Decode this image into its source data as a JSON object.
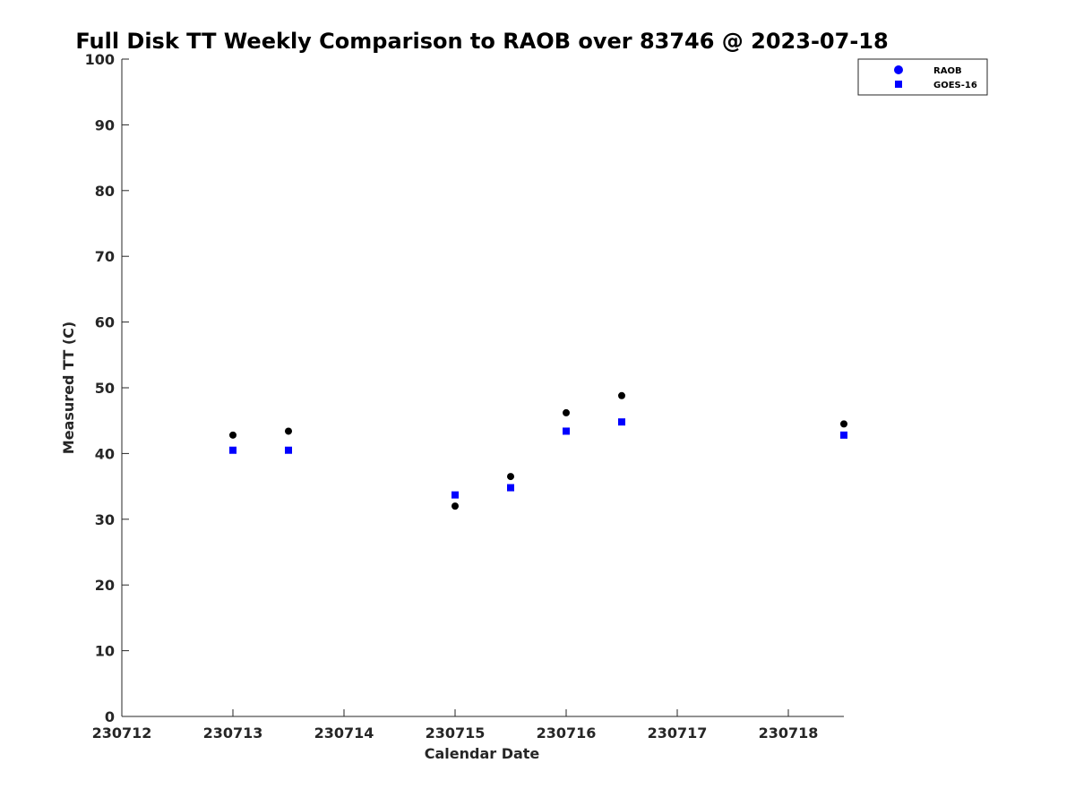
{
  "chart_data": {
    "type": "scatter",
    "title": "Full Disk TT Weekly Comparison to RAOB over 83746 @ 2023-07-18",
    "xlabel": "Calendar Date",
    "ylabel": "Measured TT (C)",
    "xlim": [
      230712,
      230718.5
    ],
    "ylim": [
      0,
      100
    ],
    "xticks": [
      230712,
      230713,
      230714,
      230715,
      230716,
      230717,
      230718
    ],
    "xtick_labels": [
      "230712",
      "230713",
      "230714",
      "230715",
      "230716",
      "230717",
      "230718"
    ],
    "yticks": [
      0,
      10,
      20,
      30,
      40,
      50,
      60,
      70,
      80,
      90,
      100
    ],
    "ytick_labels": [
      "0",
      "10",
      "20",
      "30",
      "40",
      "50",
      "60",
      "70",
      "80",
      "90",
      "100"
    ],
    "grid": false,
    "legend_position": "top-right",
    "series": [
      {
        "name": "RAOB",
        "marker": "circle",
        "color": "#000000",
        "legend_color": "#0000ff",
        "points": [
          {
            "x": 230713.0,
            "y": 42.8
          },
          {
            "x": 230713.5,
            "y": 43.4
          },
          {
            "x": 230715.0,
            "y": 32.0
          },
          {
            "x": 230715.5,
            "y": 36.5
          },
          {
            "x": 230716.0,
            "y": 46.2
          },
          {
            "x": 230716.5,
            "y": 48.8
          },
          {
            "x": 230718.5,
            "y": 44.5
          }
        ]
      },
      {
        "name": "GOES-16",
        "marker": "square",
        "color": "#0000ff",
        "legend_color": "#0000ff",
        "points": [
          {
            "x": 230713.0,
            "y": 40.5
          },
          {
            "x": 230713.5,
            "y": 40.5
          },
          {
            "x": 230715.0,
            "y": 33.7
          },
          {
            "x": 230715.5,
            "y": 34.8
          },
          {
            "x": 230716.0,
            "y": 43.4
          },
          {
            "x": 230716.5,
            "y": 44.8
          },
          {
            "x": 230718.5,
            "y": 42.8
          }
        ]
      }
    ]
  }
}
